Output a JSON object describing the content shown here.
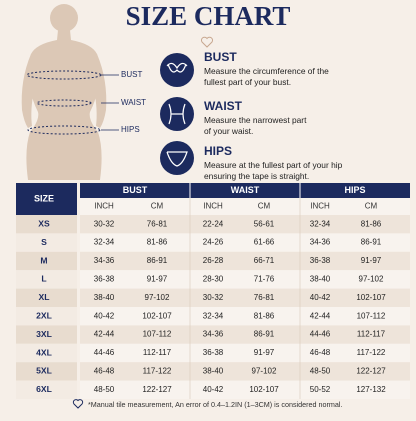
{
  "header": {
    "title": "SIZE CHART"
  },
  "figure_labels": [
    "BUST",
    "WAIST",
    "HIPS"
  ],
  "measurements": [
    {
      "title": "BUST",
      "description": [
        "Measure the circumference of the",
        "fullest part of your bust."
      ]
    },
    {
      "title": "WAIST",
      "description": [
        "Measure the narrowest part",
        "of your waist."
      ]
    },
    {
      "title": "HIPS",
      "description": [
        "Measure at the fullest part of your hip",
        "ensuring the tape is straight."
      ]
    }
  ],
  "table": {
    "size_header": "SIZE",
    "groups": [
      "BUST",
      "WAIST",
      "HIPS"
    ],
    "units": [
      "INCH",
      "CM",
      "INCH",
      "CM",
      "INCH",
      "CM"
    ],
    "rows": [
      [
        "XS",
        "30-32",
        "76-81",
        "22-24",
        "56-61",
        "32-34",
        "81-86"
      ],
      [
        "S",
        "32-34",
        "81-86",
        "24-26",
        "61-66",
        "34-36",
        "86-91"
      ],
      [
        "M",
        "34-36",
        "86-91",
        "26-28",
        "66-71",
        "36-38",
        "91-97"
      ],
      [
        "L",
        "36-38",
        "91-97",
        "28-30",
        "71-76",
        "38-40",
        "97-102"
      ],
      [
        "XL",
        "38-40",
        "97-102",
        "30-32",
        "76-81",
        "40-42",
        "102-107"
      ],
      [
        "2XL",
        "40-42",
        "102-107",
        "32-34",
        "81-86",
        "42-44",
        "107-112"
      ],
      [
        "3XL",
        "42-44",
        "107-112",
        "34-36",
        "86-91",
        "44-46",
        "112-117"
      ],
      [
        "4XL",
        "44-46",
        "112-117",
        "36-38",
        "91-97",
        "46-48",
        "117-122"
      ],
      [
        "5XL",
        "46-48",
        "117-122",
        "38-40",
        "97-102",
        "48-50",
        "122-127"
      ],
      [
        "6XL",
        "48-50",
        "122-127",
        "40-42",
        "102-107",
        "50-52",
        "127-132"
      ]
    ]
  },
  "footnote": "*Manual tile measurement, An error of 0.4–1.2IN (1–3CM) is considered normal."
}
